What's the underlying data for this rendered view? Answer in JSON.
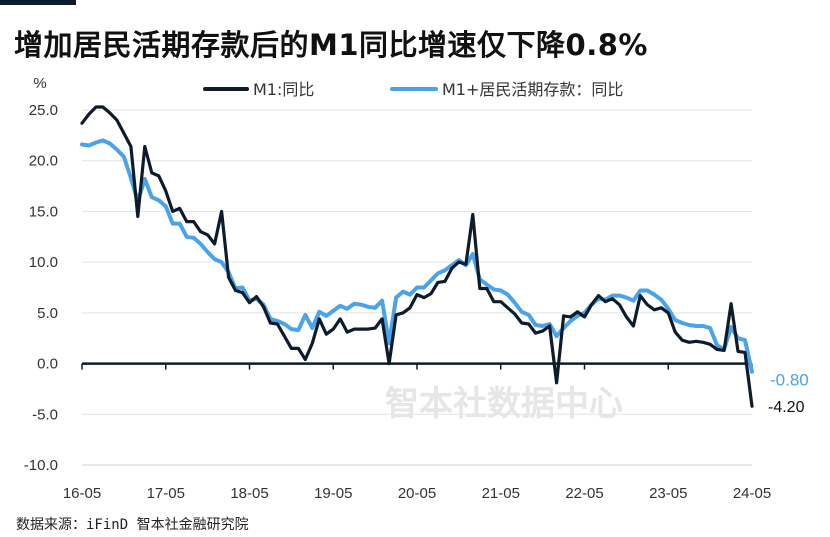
{
  "title": "增加居民活期存款后的M1同比增速仅下降0.8%",
  "source": "数据来源：iFinD 智本社金融研究院",
  "watermark": "智本社数据中心",
  "chart_data": {
    "type": "line",
    "ylabel": "%",
    "ylim": [
      -10,
      25
    ],
    "yticks": [
      25.0,
      20.0,
      15.0,
      10.0,
      5.0,
      0.0,
      -5.0,
      -10.0
    ],
    "ytick_labels": [
      "25.0",
      "20.0",
      "15.0",
      "10.0",
      "5.0",
      "0.0",
      "-5.0",
      "-10.0"
    ],
    "xticks": [
      "16-05",
      "17-05",
      "18-05",
      "19-05",
      "20-05",
      "21-05",
      "22-05",
      "23-05",
      "24-05"
    ],
    "x_start": "16-05",
    "x_end": "24-05",
    "legend_position": "top",
    "series": [
      {
        "name": "M1:同比",
        "color": "#0d1b2a",
        "end_label": "-4.20",
        "values": [
          23.7,
          24.6,
          25.3,
          25.3,
          24.7,
          24.0,
          22.7,
          21.4,
          14.5,
          21.4,
          18.8,
          18.5,
          17.0,
          15.0,
          15.3,
          14.0,
          14.0,
          13.0,
          12.7,
          11.8,
          15.0,
          8.5,
          7.2,
          7.0,
          6.0,
          6.6,
          5.6,
          4.0,
          3.9,
          2.7,
          1.5,
          1.5,
          0.4,
          2.0,
          4.4,
          2.9,
          3.4,
          4.4,
          3.1,
          3.4,
          3.4,
          3.4,
          3.5,
          4.4,
          0.0,
          4.8,
          5.0,
          5.5,
          6.8,
          6.5,
          6.9,
          8.0,
          8.1,
          9.4,
          10.0,
          9.8,
          14.7,
          7.4,
          7.4,
          6.1,
          6.1,
          5.5,
          4.9,
          4.0,
          3.9,
          3.0,
          3.2,
          3.7,
          -1.9,
          4.7,
          4.6,
          5.1,
          4.6,
          5.8,
          6.7,
          6.1,
          6.4,
          5.8,
          4.6,
          3.7,
          6.7,
          5.8,
          5.3,
          5.5,
          5.0,
          3.1,
          2.3,
          2.1,
          2.2,
          2.1,
          1.9,
          1.4,
          1.3,
          5.9,
          1.2,
          1.1,
          -4.2
        ]
      },
      {
        "name": "M1+居民活期存款：同比",
        "color": "#4aa3e8",
        "end_label": "-0.80",
        "values": [
          21.6,
          21.5,
          21.8,
          22.0,
          21.7,
          21.1,
          20.4,
          18.3,
          16.0,
          18.2,
          16.4,
          16.1,
          15.5,
          13.8,
          13.8,
          12.5,
          12.4,
          11.8,
          11.0,
          10.3,
          10.0,
          9.0,
          7.4,
          7.5,
          6.2,
          6.4,
          5.8,
          4.4,
          4.2,
          3.9,
          3.4,
          3.3,
          4.8,
          3.5,
          5.1,
          4.7,
          5.2,
          5.7,
          5.4,
          5.9,
          5.8,
          5.6,
          5.5,
          6.2,
          2.0,
          6.5,
          7.1,
          6.8,
          7.5,
          7.5,
          8.2,
          8.9,
          9.2,
          9.7,
          10.2,
          9.7,
          10.8,
          8.3,
          7.8,
          7.3,
          7.2,
          6.8,
          6.0,
          5.1,
          4.8,
          3.8,
          3.7,
          3.9,
          2.7,
          3.5,
          4.2,
          4.7,
          5.0,
          5.8,
          6.4,
          6.3,
          6.7,
          6.7,
          6.5,
          6.2,
          7.2,
          7.2,
          6.8,
          6.3,
          5.4,
          4.3,
          4.0,
          3.8,
          3.7,
          3.7,
          3.5,
          1.8,
          1.4,
          3.6,
          2.5,
          2.3,
          -0.8
        ]
      }
    ]
  }
}
